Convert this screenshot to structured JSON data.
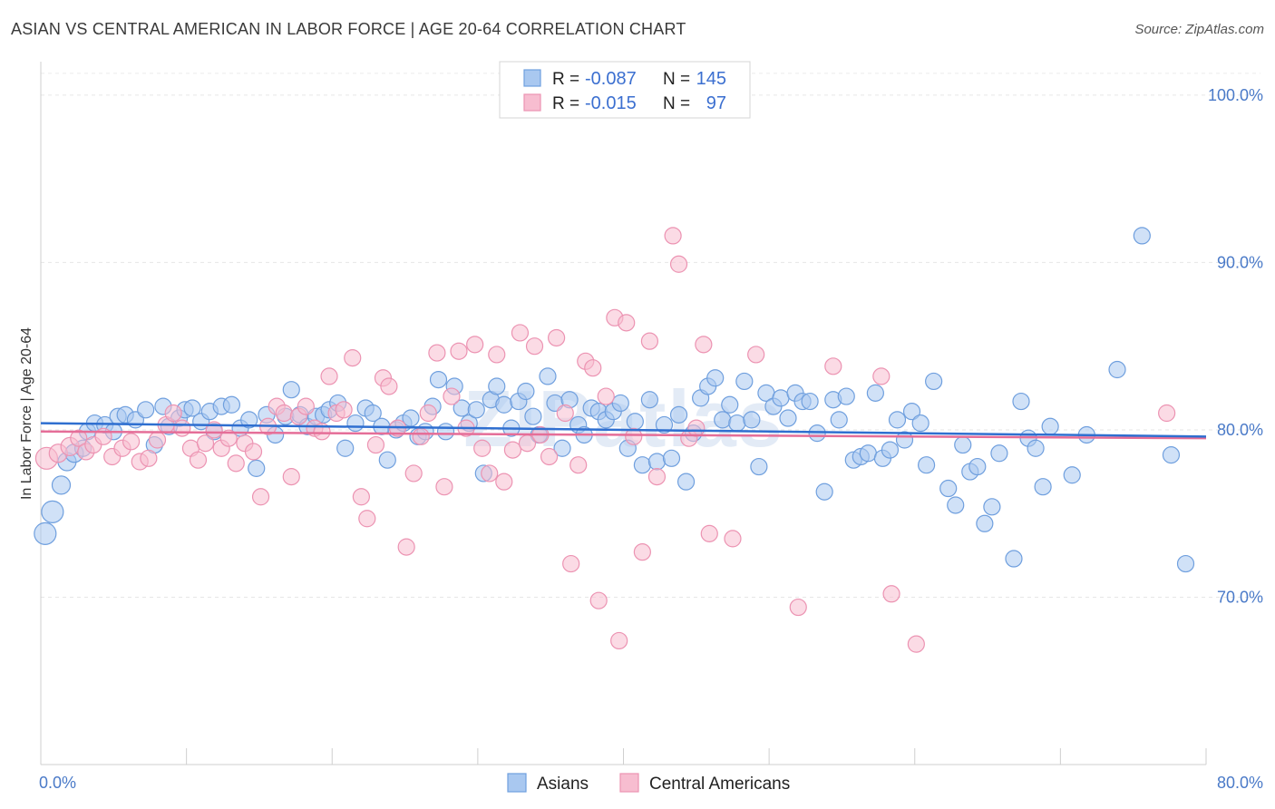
{
  "title": "ASIAN VS CENTRAL AMERICAN IN LABOR FORCE | AGE 20-64 CORRELATION CHART",
  "source": "Source: ZipAtlas.com",
  "colors": {
    "asian_fill": "#a9c8f0",
    "asian_stroke": "#6f9fde",
    "asian_line": "#2f6fd0",
    "central_fill": "#f7bdd0",
    "central_stroke": "#ec93b2",
    "central_line": "#e56e98",
    "tick_text": "#4a7ac8"
  },
  "legend": {
    "rows": [
      {
        "r_label": "R =",
        "r_value": "-0.087",
        "n_label": "N =",
        "n_value": "145"
      },
      {
        "r_label": "R =",
        "r_value": "-0.015",
        "n_label": "N =",
        "n_value": "97"
      }
    ]
  },
  "chart_data": {
    "type": "scatter",
    "title": "ASIAN VS CENTRAL AMERICAN IN LABOR FORCE | AGE 20-64 CORRELATION CHART",
    "xlabel": "",
    "ylabel": "In Labor Force | Age 20-64",
    "xlim": [
      0,
      80
    ],
    "ylim": [
      60,
      102
    ],
    "x_tick_labels": [
      "0.0%",
      "80.0%"
    ],
    "y_ticks": [
      70,
      80,
      90,
      100
    ],
    "y_tick_labels": [
      "70.0%",
      "80.0%",
      "90.0%",
      "100.0%"
    ],
    "legend_placement": "top-center",
    "bottom_legend": [
      "Asians",
      "Central Americans"
    ],
    "series": [
      {
        "name": "Asians",
        "r": -0.087,
        "n": 145,
        "trend": [
          [
            0,
            80.4
          ],
          [
            80,
            79.6
          ]
        ],
        "points": [
          [
            0.3,
            73.8
          ],
          [
            0.8,
            75.1
          ],
          [
            1.4,
            76.7
          ],
          [
            1.8,
            78.1
          ],
          [
            2.3,
            78.6
          ],
          [
            2.9,
            78.9
          ],
          [
            3.2,
            79.9
          ],
          [
            3.7,
            80.4
          ],
          [
            4.4,
            80.3
          ],
          [
            5.0,
            79.9
          ],
          [
            5.3,
            80.8
          ],
          [
            5.8,
            80.9
          ],
          [
            6.5,
            80.6
          ],
          [
            7.2,
            81.2
          ],
          [
            7.8,
            79.1
          ],
          [
            8.4,
            81.4
          ],
          [
            8.8,
            80.2
          ],
          [
            9.5,
            80.7
          ],
          [
            9.9,
            81.2
          ],
          [
            10.4,
            81.3
          ],
          [
            11.0,
            80.5
          ],
          [
            11.6,
            81.1
          ],
          [
            11.9,
            79.9
          ],
          [
            12.4,
            81.4
          ],
          [
            13.1,
            81.5
          ],
          [
            13.7,
            80.1
          ],
          [
            14.3,
            80.6
          ],
          [
            14.8,
            77.7
          ],
          [
            15.5,
            80.9
          ],
          [
            16.1,
            79.7
          ],
          [
            16.8,
            80.8
          ],
          [
            17.2,
            82.4
          ],
          [
            17.8,
            80.9
          ],
          [
            18.3,
            80.2
          ],
          [
            18.9,
            80.8
          ],
          [
            19.4,
            80.9
          ],
          [
            19.8,
            81.2
          ],
          [
            20.4,
            81.6
          ],
          [
            20.9,
            78.9
          ],
          [
            21.6,
            80.4
          ],
          [
            22.3,
            81.3
          ],
          [
            22.8,
            81.0
          ],
          [
            23.4,
            80.2
          ],
          [
            23.8,
            78.2
          ],
          [
            24.4,
            80.0
          ],
          [
            24.9,
            80.4
          ],
          [
            25.4,
            80.7
          ],
          [
            25.9,
            79.6
          ],
          [
            26.4,
            79.9
          ],
          [
            26.9,
            81.4
          ],
          [
            27.3,
            83.0
          ],
          [
            27.8,
            79.9
          ],
          [
            28.4,
            82.6
          ],
          [
            28.9,
            81.3
          ],
          [
            29.4,
            80.4
          ],
          [
            29.9,
            81.2
          ],
          [
            30.4,
            77.4
          ],
          [
            30.9,
            81.8
          ],
          [
            31.3,
            82.6
          ],
          [
            31.8,
            81.5
          ],
          [
            32.3,
            80.1
          ],
          [
            32.8,
            81.7
          ],
          [
            33.3,
            82.3
          ],
          [
            33.8,
            80.8
          ],
          [
            34.2,
            79.7
          ],
          [
            34.8,
            83.2
          ],
          [
            35.3,
            81.6
          ],
          [
            35.8,
            78.9
          ],
          [
            36.3,
            81.8
          ],
          [
            36.9,
            80.3
          ],
          [
            37.3,
            79.7
          ],
          [
            37.8,
            81.3
          ],
          [
            38.3,
            81.1
          ],
          [
            38.8,
            80.6
          ],
          [
            39.3,
            81.1
          ],
          [
            39.8,
            81.6
          ],
          [
            40.3,
            78.9
          ],
          [
            40.8,
            80.5
          ],
          [
            41.3,
            77.9
          ],
          [
            41.8,
            81.8
          ],
          [
            42.3,
            78.1
          ],
          [
            42.8,
            80.3
          ],
          [
            43.3,
            78.3
          ],
          [
            43.8,
            80.9
          ],
          [
            44.3,
            76.9
          ],
          [
            44.8,
            79.8
          ],
          [
            45.3,
            81.9
          ],
          [
            45.8,
            82.6
          ],
          [
            46.3,
            83.1
          ],
          [
            46.8,
            80.6
          ],
          [
            47.3,
            81.5
          ],
          [
            47.8,
            80.4
          ],
          [
            48.3,
            82.9
          ],
          [
            48.8,
            80.6
          ],
          [
            49.3,
            77.8
          ],
          [
            49.8,
            82.2
          ],
          [
            50.3,
            81.4
          ],
          [
            50.8,
            81.9
          ],
          [
            51.3,
            80.7
          ],
          [
            51.8,
            82.2
          ],
          [
            52.3,
            81.7
          ],
          [
            52.8,
            81.7
          ],
          [
            53.3,
            79.8
          ],
          [
            53.8,
            76.3
          ],
          [
            54.4,
            81.8
          ],
          [
            54.8,
            80.6
          ],
          [
            55.3,
            82.0
          ],
          [
            55.8,
            78.2
          ],
          [
            56.3,
            78.4
          ],
          [
            56.8,
            78.6
          ],
          [
            57.3,
            82.2
          ],
          [
            57.8,
            78.3
          ],
          [
            58.3,
            78.8
          ],
          [
            58.8,
            80.6
          ],
          [
            59.3,
            79.4
          ],
          [
            59.8,
            81.1
          ],
          [
            60.4,
            80.4
          ],
          [
            60.8,
            77.9
          ],
          [
            61.3,
            82.9
          ],
          [
            62.3,
            76.5
          ],
          [
            62.8,
            75.5
          ],
          [
            63.3,
            79.1
          ],
          [
            63.8,
            77.5
          ],
          [
            64.3,
            77.8
          ],
          [
            64.8,
            74.4
          ],
          [
            65.3,
            75.4
          ],
          [
            65.8,
            78.6
          ],
          [
            66.8,
            72.3
          ],
          [
            67.3,
            81.7
          ],
          [
            67.8,
            79.5
          ],
          [
            68.3,
            78.9
          ],
          [
            68.8,
            76.6
          ],
          [
            69.3,
            80.2
          ],
          [
            70.8,
            77.3
          ],
          [
            71.8,
            79.7
          ],
          [
            73.9,
            83.6
          ],
          [
            75.6,
            91.6
          ],
          [
            77.6,
            78.5
          ],
          [
            78.6,
            72.0
          ]
        ]
      },
      {
        "name": "Central Americans",
        "r": -0.015,
        "n": 97,
        "trend": [
          [
            0,
            79.9
          ],
          [
            80,
            79.5
          ]
        ],
        "points": [
          [
            0.4,
            78.3
          ],
          [
            1.2,
            78.6
          ],
          [
            2.0,
            79.0
          ],
          [
            2.6,
            79.5
          ],
          [
            3.1,
            78.7
          ],
          [
            3.6,
            79.1
          ],
          [
            4.3,
            79.6
          ],
          [
            4.9,
            78.4
          ],
          [
            5.6,
            78.9
          ],
          [
            6.2,
            79.3
          ],
          [
            6.8,
            78.1
          ],
          [
            7.4,
            78.3
          ],
          [
            8.0,
            79.4
          ],
          [
            8.6,
            80.3
          ],
          [
            9.1,
            81.0
          ],
          [
            9.7,
            80.1
          ],
          [
            10.3,
            78.9
          ],
          [
            10.8,
            78.2
          ],
          [
            11.3,
            79.2
          ],
          [
            11.9,
            80.0
          ],
          [
            12.4,
            78.9
          ],
          [
            12.9,
            79.5
          ],
          [
            13.4,
            78.0
          ],
          [
            14.0,
            79.2
          ],
          [
            14.6,
            78.7
          ],
          [
            15.1,
            76.0
          ],
          [
            15.6,
            80.2
          ],
          [
            16.2,
            81.4
          ],
          [
            16.7,
            81.0
          ],
          [
            17.2,
            77.2
          ],
          [
            17.7,
            80.8
          ],
          [
            18.2,
            81.4
          ],
          [
            18.8,
            80.1
          ],
          [
            19.3,
            79.9
          ],
          [
            19.8,
            83.2
          ],
          [
            20.3,
            81.0
          ],
          [
            20.8,
            81.2
          ],
          [
            21.4,
            84.3
          ],
          [
            22.0,
            76.0
          ],
          [
            22.4,
            74.7
          ],
          [
            23.0,
            79.1
          ],
          [
            23.5,
            83.1
          ],
          [
            23.9,
            82.6
          ],
          [
            24.5,
            80.1
          ],
          [
            25.1,
            73.0
          ],
          [
            25.6,
            77.4
          ],
          [
            26.1,
            79.6
          ],
          [
            26.6,
            81.0
          ],
          [
            27.2,
            84.6
          ],
          [
            27.7,
            76.6
          ],
          [
            28.2,
            82.0
          ],
          [
            28.7,
            84.7
          ],
          [
            29.2,
            80.1
          ],
          [
            29.8,
            85.1
          ],
          [
            30.3,
            78.9
          ],
          [
            30.8,
            77.4
          ],
          [
            31.3,
            84.5
          ],
          [
            31.8,
            76.9
          ],
          [
            32.4,
            78.8
          ],
          [
            32.9,
            85.8
          ],
          [
            33.4,
            79.2
          ],
          [
            33.9,
            85.0
          ],
          [
            34.3,
            79.7
          ],
          [
            34.9,
            78.4
          ],
          [
            35.4,
            85.5
          ],
          [
            36.0,
            81.0
          ],
          [
            36.4,
            72.0
          ],
          [
            36.9,
            77.9
          ],
          [
            37.4,
            84.1
          ],
          [
            37.9,
            83.7
          ],
          [
            38.3,
            69.8
          ],
          [
            38.8,
            82.0
          ],
          [
            39.4,
            86.7
          ],
          [
            39.7,
            67.4
          ],
          [
            40.2,
            86.4
          ],
          [
            40.7,
            79.6
          ],
          [
            41.3,
            72.7
          ],
          [
            41.8,
            85.3
          ],
          [
            42.3,
            77.2
          ],
          [
            43.4,
            91.6
          ],
          [
            43.8,
            89.9
          ],
          [
            44.5,
            79.5
          ],
          [
            45.0,
            80.1
          ],
          [
            45.5,
            85.1
          ],
          [
            45.9,
            73.8
          ],
          [
            47.5,
            73.5
          ],
          [
            49.1,
            84.5
          ],
          [
            52.0,
            69.4
          ],
          [
            54.4,
            83.8
          ],
          [
            57.7,
            83.2
          ],
          [
            58.4,
            70.2
          ],
          [
            60.1,
            67.2
          ],
          [
            77.3,
            81.0
          ]
        ]
      }
    ]
  }
}
